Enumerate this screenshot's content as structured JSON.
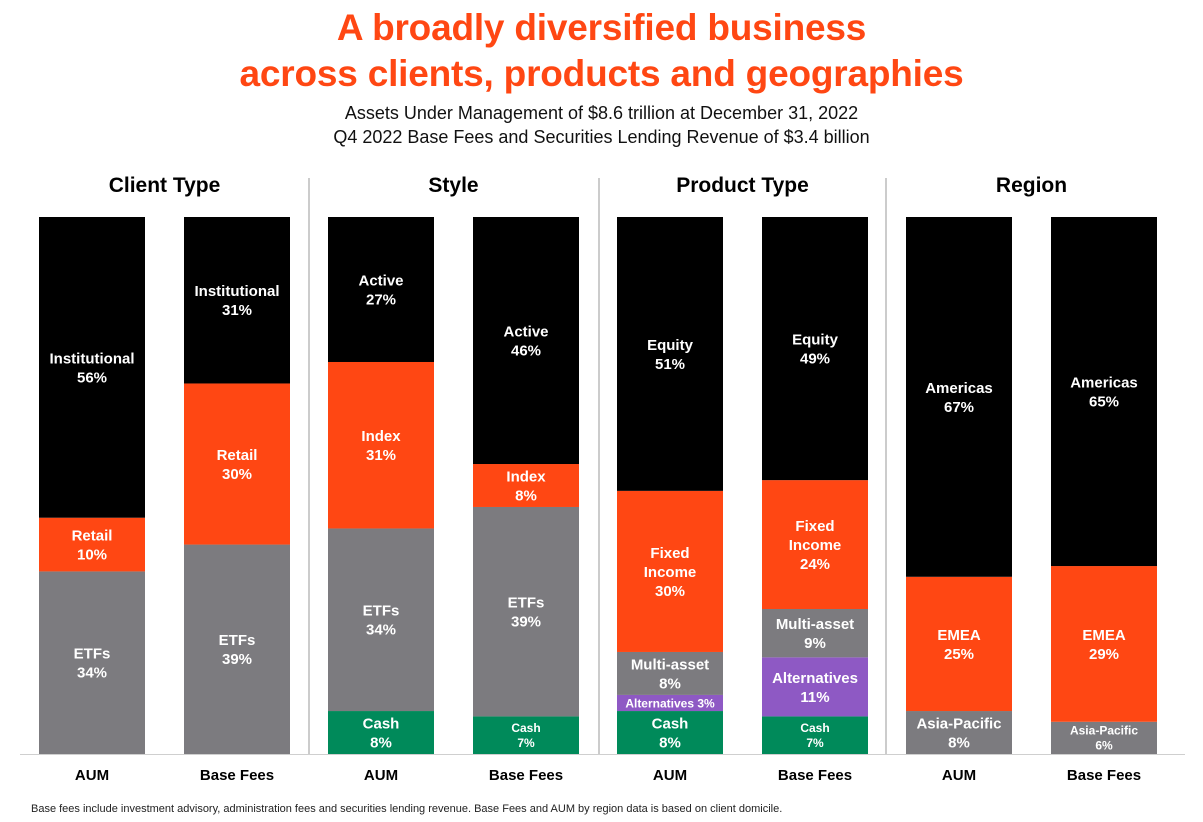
{
  "header": {
    "title_line1": "A broadly diversified business",
    "title_line2": "across clients, products and geographies",
    "subtitle_line1": "Assets Under Management of $8.6 trillion at December 31, 2022",
    "subtitle_line2": "Q4 2022 Base Fees and Securities Lending Revenue of $3.4 billion"
  },
  "footnote": "Base fees include investment advisory, administration fees and securities lending revenue. Base Fees and AUM by region data is based on client domicile.",
  "colors": {
    "title": "#ff4713",
    "black": "#000000",
    "orange": "#ff4713",
    "gray": "#7c7b7f",
    "green": "#008a5a",
    "purple": "#8e59c4",
    "divider": "#9a9a9a"
  },
  "chart_data": {
    "type": "bar",
    "stacked": true,
    "percent": true,
    "groups": [
      {
        "title": "Client Type",
        "bars": [
          {
            "label": "AUM",
            "segments": [
              {
                "name": "ETFs",
                "value": 34,
                "color": "gray",
                "label_lines": [
                  "ETFs",
                  "34%"
                ]
              },
              {
                "name": "Retail",
                "value": 10,
                "color": "orange",
                "label_lines": [
                  "Retail",
                  "10%"
                ]
              },
              {
                "name": "Institutional",
                "value": 56,
                "color": "black",
                "label_lines": [
                  "Institutional",
                  "56%"
                ]
              }
            ]
          },
          {
            "label": "Base Fees",
            "segments": [
              {
                "name": "ETFs",
                "value": 39,
                "color": "gray",
                "label_lines": [
                  "ETFs",
                  "39%"
                ]
              },
              {
                "name": "Retail",
                "value": 30,
                "color": "orange",
                "label_lines": [
                  "Retail",
                  "30%"
                ]
              },
              {
                "name": "Institutional",
                "value": 31,
                "color": "black",
                "label_lines": [
                  "Institutional",
                  "31%"
                ]
              }
            ]
          }
        ]
      },
      {
        "title": "Style",
        "bars": [
          {
            "label": "AUM",
            "segments": [
              {
                "name": "Cash",
                "value": 8,
                "color": "green",
                "label_lines": [
                  "Cash",
                  "8%"
                ]
              },
              {
                "name": "ETFs",
                "value": 34,
                "color": "gray",
                "label_lines": [
                  "ETFs",
                  "34%"
                ]
              },
              {
                "name": "Index",
                "value": 31,
                "color": "orange",
                "label_lines": [
                  "Index",
                  "31%"
                ]
              },
              {
                "name": "Active",
                "value": 27,
                "color": "black",
                "label_lines": [
                  "Active",
                  "27%"
                ]
              }
            ]
          },
          {
            "label": "Base Fees",
            "segments": [
              {
                "name": "Cash",
                "value": 7,
                "color": "green",
                "label_lines": [
                  "Cash",
                  "7%"
                ]
              },
              {
                "name": "ETFs",
                "value": 39,
                "color": "gray",
                "label_lines": [
                  "ETFs",
                  "39%"
                ]
              },
              {
                "name": "Index",
                "value": 8,
                "color": "orange",
                "label_lines": [
                  "Index",
                  "8%"
                ]
              },
              {
                "name": "Active",
                "value": 46,
                "color": "black",
                "label_lines": [
                  "Active",
                  "46%"
                ]
              }
            ]
          }
        ]
      },
      {
        "title": "Product Type",
        "bars": [
          {
            "label": "AUM",
            "segments": [
              {
                "name": "Cash",
                "value": 8,
                "color": "green",
                "label_lines": [
                  "Cash",
                  "8%"
                ]
              },
              {
                "name": "Alternatives",
                "value": 3,
                "color": "purple",
                "label_lines": [
                  "Alternatives 3%"
                ]
              },
              {
                "name": "Multi-asset",
                "value": 8,
                "color": "gray",
                "label_lines": [
                  "Multi-asset",
                  "8%"
                ]
              },
              {
                "name": "Fixed Income",
                "value": 30,
                "color": "orange",
                "label_lines": [
                  "Fixed",
                  "Income",
                  "30%"
                ]
              },
              {
                "name": "Equity",
                "value": 51,
                "color": "black",
                "label_lines": [
                  "Equity",
                  "51%"
                ]
              }
            ]
          },
          {
            "label": "Base Fees",
            "segments": [
              {
                "name": "Cash",
                "value": 7,
                "color": "green",
                "label_lines": [
                  "Cash",
                  "7%"
                ]
              },
              {
                "name": "Alternatives",
                "value": 11,
                "color": "purple",
                "label_lines": [
                  "Alternatives",
                  "11%"
                ]
              },
              {
                "name": "Multi-asset",
                "value": 9,
                "color": "gray",
                "label_lines": [
                  "Multi-asset",
                  "9%"
                ]
              },
              {
                "name": "Fixed Income",
                "value": 24,
                "color": "orange",
                "label_lines": [
                  "Fixed",
                  "Income",
                  "24%"
                ]
              },
              {
                "name": "Equity",
                "value": 49,
                "color": "black",
                "label_lines": [
                  "Equity",
                  "49%"
                ]
              }
            ]
          }
        ]
      },
      {
        "title": "Region",
        "bars": [
          {
            "label": "AUM",
            "segments": [
              {
                "name": "Asia-Pacific",
                "value": 8,
                "color": "gray",
                "label_lines": [
                  "Asia-Pacific",
                  "8%"
                ]
              },
              {
                "name": "EMEA",
                "value": 25,
                "color": "orange",
                "label_lines": [
                  "EMEA",
                  "25%"
                ]
              },
              {
                "name": "Americas",
                "value": 67,
                "color": "black",
                "label_lines": [
                  "Americas",
                  "67%"
                ]
              }
            ]
          },
          {
            "label": "Base Fees",
            "segments": [
              {
                "name": "Asia-Pacific",
                "value": 6,
                "color": "gray",
                "label_lines": [
                  "Asia-Pacific",
                  "6%"
                ]
              },
              {
                "name": "EMEA",
                "value": 29,
                "color": "orange",
                "label_lines": [
                  "EMEA",
                  "29%"
                ]
              },
              {
                "name": "Americas",
                "value": 65,
                "color": "black",
                "label_lines": [
                  "Americas",
                  "65%"
                ]
              }
            ]
          }
        ]
      }
    ]
  }
}
